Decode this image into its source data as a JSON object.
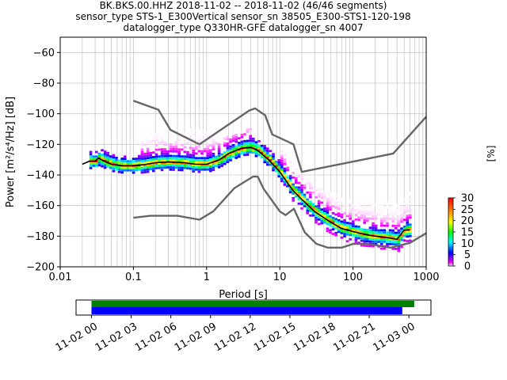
{
  "header": {
    "title_lines": [
      "BK.BKS.00.HHZ   2018-11-02 -- 2018-11-02  (46/46 segments)",
      "sensor_type STS-1_E300Vertical sensor_sn 38505_E300-STS1-120-198",
      "datalogger_type Q330HR-GFE datalogger_sn 4007"
    ]
  },
  "chart_data": [
    {
      "type": "line",
      "title": "BK.BKS.00.HHZ   2018-11-02 -- 2018-11-02  (46/46 segments)",
      "xlabel": "Period [s]",
      "ylabel": "Power [m²/s⁴/Hz] [dB]",
      "xscale": "log",
      "xlim": [
        0.01,
        1000
      ],
      "ylim": [
        -200,
        -50
      ],
      "xticks": [
        0.01,
        0.1,
        1,
        10,
        100,
        1000
      ],
      "xtick_labels": [
        "0.01",
        "0.1",
        "1",
        "10",
        "100",
        "1000"
      ],
      "yticks": [
        -200,
        -180,
        -160,
        -140,
        -120,
        -100,
        -80,
        -60
      ],
      "ytick_labels": [
        "−200",
        "−180",
        "−160",
        "−140",
        "−120",
        "−100",
        "−80",
        "−60"
      ],
      "grid": true,
      "series": [
        {
          "role": "high-noise-model",
          "color": "#666666",
          "points": [
            [
              0.1,
              -91.5
            ],
            [
              0.22,
              -97.4
            ],
            [
              0.32,
              -110.5
            ],
            [
              0.8,
              -120
            ],
            [
              3.8,
              -98
            ],
            [
              4.6,
              -96.5
            ],
            [
              6.3,
              -101
            ],
            [
              7.9,
              -113.5
            ],
            [
              15.4,
              -120
            ],
            [
              20,
              -138
            ],
            [
              354.8,
              -126
            ],
            [
              10000,
              -48.5
            ]
          ]
        },
        {
          "role": "low-noise-model",
          "color": "#666666",
          "points": [
            [
              0.1,
              -168
            ],
            [
              0.17,
              -166.7
            ],
            [
              0.4,
              -166.7
            ],
            [
              0.8,
              -169.2
            ],
            [
              1.24,
              -163.7
            ],
            [
              2.4,
              -148.6
            ],
            [
              4.3,
              -141.1
            ],
            [
              5,
              -141.1
            ],
            [
              6,
              -149
            ],
            [
              10,
              -163.8
            ],
            [
              12,
              -166.2
            ],
            [
              15.6,
              -162.1
            ],
            [
              21.9,
              -177.5
            ],
            [
              31.6,
              -185
            ],
            [
              45,
              -187.5
            ],
            [
              70,
              -187.5
            ],
            [
              101,
              -185
            ],
            [
              154,
              -185
            ],
            [
              328,
              -187.5
            ],
            [
              600,
              -184.4
            ],
            [
              1000,
              -178
            ]
          ]
        },
        {
          "role": "median",
          "color": "#000000",
          "points": [
            [
              0.02,
              -133
            ],
            [
              0.025,
              -131
            ],
            [
              0.03,
              -131
            ],
            [
              0.033,
              -129
            ],
            [
              0.04,
              -131
            ],
            [
              0.05,
              -133
            ],
            [
              0.07,
              -134
            ],
            [
              0.1,
              -134
            ],
            [
              0.15,
              -133
            ],
            [
              0.2,
              -132
            ],
            [
              0.3,
              -131.5
            ],
            [
              0.5,
              -132
            ],
            [
              0.7,
              -133
            ],
            [
              1,
              -133
            ],
            [
              1.5,
              -130
            ],
            [
              2,
              -126
            ],
            [
              3,
              -122.5
            ],
            [
              4,
              -122
            ],
            [
              5,
              -124
            ],
            [
              7,
              -130
            ],
            [
              10,
              -138
            ],
            [
              15,
              -150
            ],
            [
              20,
              -156
            ],
            [
              30,
              -164
            ],
            [
              50,
              -171
            ],
            [
              70,
              -175
            ],
            [
              100,
              -177
            ],
            [
              150,
              -179
            ],
            [
              200,
              -180
            ],
            [
              300,
              -181
            ],
            [
              400,
              -182
            ],
            [
              500,
              -176
            ],
            [
              600,
              -176
            ]
          ]
        }
      ],
      "colorbar": {
        "label": "[%]",
        "ticks": [
          0,
          5,
          10,
          15,
          20,
          25,
          30
        ],
        "tick_labels": [
          "0",
          "5",
          "10",
          "15",
          "20",
          "25",
          "30"
        ],
        "range": [
          0,
          30
        ]
      }
    },
    {
      "type": "timeline",
      "x_start": "2018-11-01 22:50",
      "x_end": "2018-11-03 01:40",
      "xtick_labels": [
        "11-02 00",
        "11-02 03",
        "11-02 06",
        "11-02 09",
        "11-02 12",
        "11-02 15",
        "11-02 18",
        "11-02 21",
        "11-03 00"
      ],
      "bars": [
        {
          "color": "#008000",
          "start_hour": 0.0,
          "end_hour": 24.4
        },
        {
          "color": "#0000ff",
          "start_hour": 0.0,
          "end_hour": 23.5
        }
      ]
    }
  ]
}
